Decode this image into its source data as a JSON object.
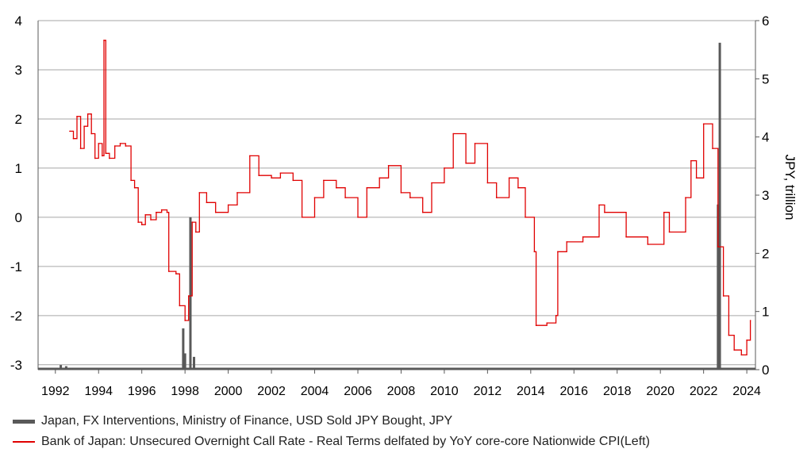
{
  "chart_data": {
    "type": "line",
    "x_ticks": [
      "1992",
      "1994",
      "1996",
      "1998",
      "2000",
      "2002",
      "2004",
      "2006",
      "2008",
      "2010",
      "2012",
      "2014",
      "2016",
      "2018",
      "2020",
      "2022",
      "2024"
    ],
    "left_axis": {
      "ylim": [
        -3.1,
        4
      ],
      "ticks": [
        "4",
        "3",
        "2",
        "1",
        "0",
        "-1",
        "-2",
        "-3"
      ]
    },
    "right_axis": {
      "label": "JPY, trillion",
      "ylim": [
        0,
        6
      ],
      "ticks": [
        "6",
        "5",
        "4",
        "3",
        "2",
        "1",
        "0"
      ]
    },
    "grid": true,
    "legend_position": "bottom",
    "series": [
      {
        "name": "Japan, FX Interventions, Ministry of Finance, USD Sold JPY Bought, JPY",
        "type": "bar",
        "axis": "right",
        "color": "#595959",
        "points": [
          [
            "1992-01",
            0.02
          ],
          [
            "1992-04",
            0.08
          ],
          [
            "1992-07",
            0.06
          ],
          [
            "1992-10",
            0.03
          ],
          [
            "1997-12",
            0.71
          ],
          [
            "1998-01",
            0.28
          ],
          [
            "1998-04",
            2.62
          ],
          [
            "1998-06",
            0.22
          ],
          [
            "2022-09",
            2.84
          ],
          [
            "2022-10",
            5.62
          ]
        ]
      },
      {
        "name": "Bank of Japan: Unsecured Overnight Call Rate - Real Terms delfated by YoY core-core Nationwide CPI(Left)",
        "type": "line",
        "axis": "left",
        "color": "#e00000",
        "points": [
          [
            "1992-09",
            1.75
          ],
          [
            "1992-11",
            1.6
          ],
          [
            "1993-01",
            2.05
          ],
          [
            "1993-03",
            1.4
          ],
          [
            "1993-05",
            1.85
          ],
          [
            "1993-07",
            2.1
          ],
          [
            "1993-09",
            1.7
          ],
          [
            "1993-11",
            1.2
          ],
          [
            "1994-01",
            1.5
          ],
          [
            "1994-03",
            1.25
          ],
          [
            "1994-04",
            3.6
          ],
          [
            "1994-05",
            1.3
          ],
          [
            "1994-07",
            1.2
          ],
          [
            "1994-10",
            1.45
          ],
          [
            "1995-01",
            1.5
          ],
          [
            "1995-04",
            1.45
          ],
          [
            "1995-07",
            0.75
          ],
          [
            "1995-09",
            0.6
          ],
          [
            "1995-11",
            -0.1
          ],
          [
            "1996-01",
            -0.15
          ],
          [
            "1996-03",
            0.05
          ],
          [
            "1996-06",
            -0.05
          ],
          [
            "1996-09",
            0.1
          ],
          [
            "1996-12",
            0.15
          ],
          [
            "1997-03",
            0.1
          ],
          [
            "1997-04",
            -1.1
          ],
          [
            "1997-08",
            -1.15
          ],
          [
            "1997-10",
            -1.8
          ],
          [
            "1998-01",
            -2.1
          ],
          [
            "1998-03",
            -1.6
          ],
          [
            "1998-05",
            -0.1
          ],
          [
            "1998-07",
            -0.3
          ],
          [
            "1998-09",
            0.5
          ],
          [
            "1999-01",
            0.3
          ],
          [
            "1999-06",
            0.1
          ],
          [
            "2000-01",
            0.25
          ],
          [
            "2000-06",
            0.5
          ],
          [
            "2001-01",
            1.25
          ],
          [
            "2001-06",
            0.85
          ],
          [
            "2002-01",
            0.8
          ],
          [
            "2002-06",
            0.9
          ],
          [
            "2003-01",
            0.75
          ],
          [
            "2003-06",
            0.0
          ],
          [
            "2004-01",
            0.4
          ],
          [
            "2004-06",
            0.75
          ],
          [
            "2005-01",
            0.6
          ],
          [
            "2005-06",
            0.4
          ],
          [
            "2006-01",
            0.0
          ],
          [
            "2006-06",
            0.6
          ],
          [
            "2007-01",
            0.8
          ],
          [
            "2007-06",
            1.05
          ],
          [
            "2008-01",
            0.5
          ],
          [
            "2008-06",
            0.4
          ],
          [
            "2009-01",
            0.1
          ],
          [
            "2009-06",
            0.7
          ],
          [
            "2010-01",
            1.0
          ],
          [
            "2010-06",
            1.7
          ],
          [
            "2011-01",
            1.1
          ],
          [
            "2011-06",
            1.5
          ],
          [
            "2012-01",
            0.7
          ],
          [
            "2012-06",
            0.4
          ],
          [
            "2013-01",
            0.8
          ],
          [
            "2013-06",
            0.6
          ],
          [
            "2013-10",
            0.0
          ],
          [
            "2014-03",
            -0.7
          ],
          [
            "2014-04",
            -2.2
          ],
          [
            "2014-10",
            -2.15
          ],
          [
            "2015-03",
            -2.0
          ],
          [
            "2015-04",
            -0.7
          ],
          [
            "2015-09",
            -0.5
          ],
          [
            "2016-06",
            -0.4
          ],
          [
            "2017-03",
            0.25
          ],
          [
            "2017-06",
            0.1
          ],
          [
            "2018-06",
            -0.4
          ],
          [
            "2019-06",
            -0.55
          ],
          [
            "2020-03",
            0.1
          ],
          [
            "2020-06",
            -0.3
          ],
          [
            "2021-03",
            0.4
          ],
          [
            "2021-06",
            1.15
          ],
          [
            "2021-09",
            0.8
          ],
          [
            "2022-01",
            1.9
          ],
          [
            "2022-06",
            1.4
          ],
          [
            "2022-09",
            -0.6
          ],
          [
            "2022-12",
            -1.6
          ],
          [
            "2023-03",
            -2.4
          ],
          [
            "2023-06",
            -2.7
          ],
          [
            "2023-10",
            -2.8
          ],
          [
            "2024-01",
            -2.5
          ],
          [
            "2024-03",
            -2.1
          ]
        ]
      }
    ]
  }
}
